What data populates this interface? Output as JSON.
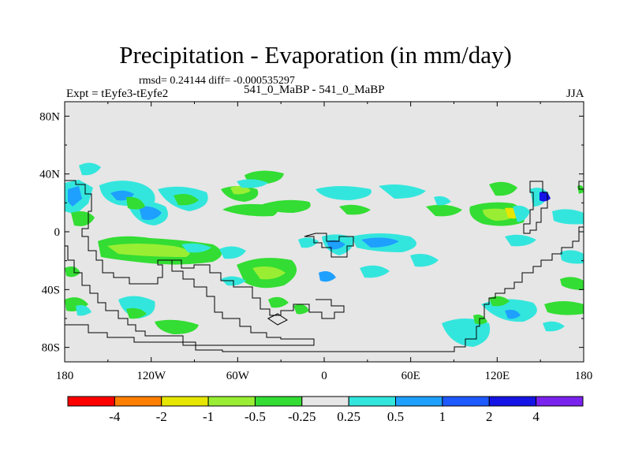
{
  "chart_data": {
    "type": "contour-map",
    "title": "Precipitation - Evaporation (in mm/day)",
    "stats": "rmsd= 0.24144 diff= -0.000535297",
    "expt_label": "Expt = tEyfe3-tEyfe2",
    "cases_label": "541_0_MaBP - 541_0_MaBP",
    "season": "JJA",
    "units": "mm/day",
    "lon_range": [
      -180,
      180
    ],
    "lat_range": [
      -90,
      90
    ],
    "x_ticks": [
      {
        "lon": -180,
        "label": "180"
      },
      {
        "lon": -120,
        "label": "120W"
      },
      {
        "lon": -60,
        "label": "60W"
      },
      {
        "lon": 0,
        "label": "0"
      },
      {
        "lon": 60,
        "label": "60E"
      },
      {
        "lon": 120,
        "label": "120E"
      },
      {
        "lon": 180,
        "label": "180"
      }
    ],
    "y_ticks": [
      {
        "lat": 80,
        "label": "80N"
      },
      {
        "lat": 40,
        "label": "40N"
      },
      {
        "lat": 0,
        "label": "0"
      },
      {
        "lat": -40,
        "label": "40S"
      },
      {
        "lat": -80,
        "label": "80S"
      }
    ],
    "colorbar": {
      "colors": [
        "#ff0000",
        "#ff7f00",
        "#e6e600",
        "#99ee33",
        "#33dd33",
        "#e6e6e6",
        "#33e6dd",
        "#1ea0ff",
        "#1e5aff",
        "#1414e6",
        "#7a22ee"
      ],
      "labels": [
        "-4",
        "-2",
        "-1",
        "-0.5",
        "-0.25",
        "0.25",
        "0.5",
        "1",
        "2",
        "4"
      ]
    },
    "anomalies": [
      {
        "lon": -150,
        "lat": 22,
        "level": "0.5",
        "color": "#1ea0ff"
      },
      {
        "lon": -140,
        "lat": 18,
        "level": "-0.25",
        "color": "#33dd33"
      },
      {
        "lon": -150,
        "lat": -18,
        "level": "-0.5",
        "color": "#99ee33"
      },
      {
        "lon": -105,
        "lat": -14,
        "level": "-0.25",
        "color": "#33dd33"
      },
      {
        "lon": -98,
        "lat": 22,
        "level": "-0.5",
        "color": "#99ee33"
      },
      {
        "lon": -40,
        "lat": -42,
        "level": "-0.25",
        "color": "#33dd33"
      },
      {
        "lon": 15,
        "lat": -10,
        "level": "0.5",
        "color": "#1ea0ff"
      },
      {
        "lon": 40,
        "lat": -12,
        "level": "1",
        "color": "#1e5aff"
      },
      {
        "lon": 85,
        "lat": 22,
        "level": "-0.25",
        "color": "#33dd33"
      },
      {
        "lon": 130,
        "lat": 20,
        "level": "-1",
        "color": "#e6e600"
      },
      {
        "lon": 148,
        "lat": 28,
        "level": "2",
        "color": "#1414e6"
      },
      {
        "lon": 100,
        "lat": -78,
        "level": "0.25",
        "color": "#33e6dd"
      }
    ]
  }
}
